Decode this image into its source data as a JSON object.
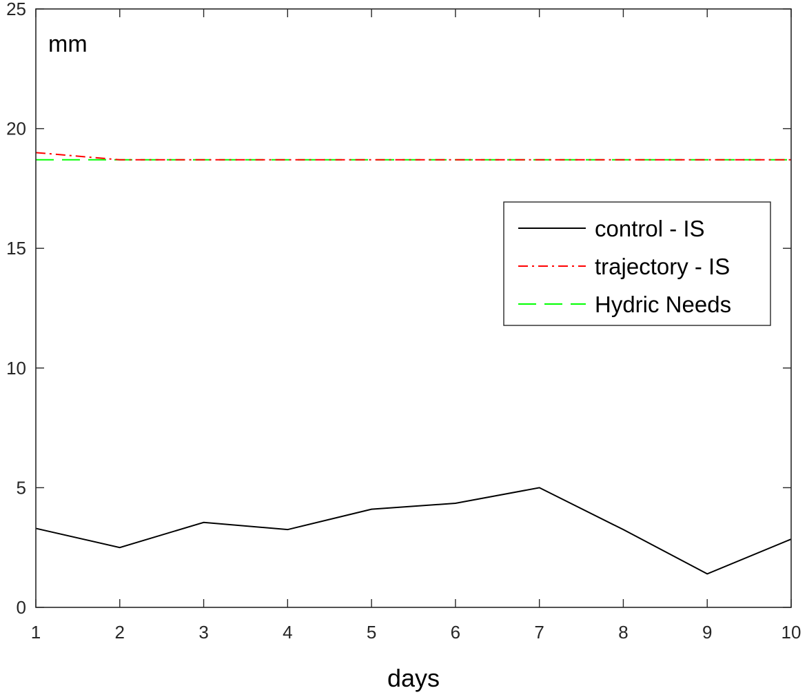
{
  "chart_data": {
    "type": "line",
    "title": "",
    "xlabel": "days",
    "ylabel": "",
    "annotation": "mm",
    "x": [
      1,
      2,
      3,
      4,
      5,
      6,
      7,
      8,
      9,
      10
    ],
    "xlim": [
      1,
      10
    ],
    "ylim": [
      0,
      25
    ],
    "x_ticks": [
      "1",
      "2",
      "3",
      "4",
      "5",
      "6",
      "7",
      "8",
      "9",
      "10"
    ],
    "y_ticks": [
      "0",
      "5",
      "10",
      "15",
      "20",
      "25"
    ],
    "grid": false,
    "legend_position": "upper-right",
    "series": [
      {
        "name": "control - IS",
        "color": "#000000",
        "style": "solid",
        "values": [
          3.3,
          2.5,
          3.55,
          3.25,
          4.1,
          4.35,
          5.0,
          3.25,
          1.4,
          2.85
        ]
      },
      {
        "name": "trajectory - IS",
        "color": "#ff0000",
        "style": "dashdot",
        "values": [
          19.0,
          18.7,
          18.7,
          18.7,
          18.7,
          18.7,
          18.7,
          18.7,
          18.7,
          18.7
        ]
      },
      {
        "name": "Hydric Needs",
        "color": "#00ff00",
        "style": "dashed",
        "values": [
          18.7,
          18.7,
          18.7,
          18.7,
          18.7,
          18.7,
          18.7,
          18.7,
          18.7,
          18.7
        ]
      }
    ]
  }
}
